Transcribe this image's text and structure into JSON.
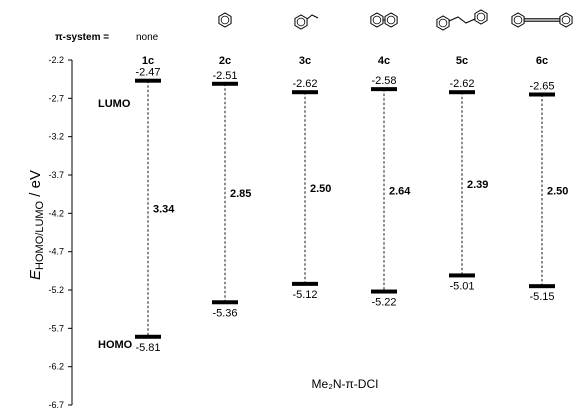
{
  "chart_data": {
    "type": "energy-level diagram",
    "pi_system_label": "π-system =",
    "pi_none_label": "none",
    "xlabel": "Me₂N-π-DCI",
    "ylabel": {
      "main": "E",
      "sub": "HOMO/LUMO",
      "rest": " / eV"
    },
    "ylim": [
      -6.7,
      -2.2
    ],
    "yticks": [
      "-2.2",
      "-2.7",
      "-3.2",
      "-3.7",
      "-4.2",
      "-4.7",
      "-5.2",
      "-5.7",
      "-6.2",
      "-6.7"
    ],
    "level_names": {
      "lumo": "LUMO",
      "homo": "HOMO"
    },
    "compounds": [
      {
        "label": "1c",
        "pi_system": "none",
        "lumo": -2.47,
        "homo": -5.81,
        "lumo_label": "-2.47",
        "homo_label": "-5.81",
        "gap_label": "3.34"
      },
      {
        "label": "2c",
        "pi_system": "benzene",
        "lumo": -2.51,
        "homo": -5.36,
        "lumo_label": "-2.51",
        "homo_label": "-5.36",
        "gap_label": "2.85"
      },
      {
        "label": "3c",
        "pi_system": "styrene",
        "lumo": -2.62,
        "homo": -5.12,
        "lumo_label": "-2.62",
        "homo_label": "-5.12",
        "gap_label": "2.50"
      },
      {
        "label": "4c",
        "pi_system": "biphenyl",
        "lumo": -2.58,
        "homo": -5.22,
        "lumo_label": "-2.58",
        "homo_label": "-5.22",
        "gap_label": "2.64"
      },
      {
        "label": "5c",
        "pi_system": "stilbene",
        "lumo": -2.62,
        "homo": -5.01,
        "lumo_label": "-2.62",
        "homo_label": "-5.01",
        "gap_label": "2.39"
      },
      {
        "label": "6c",
        "pi_system": "tolane",
        "lumo": -2.65,
        "homo": -5.15,
        "lumo_label": "-2.65",
        "homo_label": "-5.15",
        "gap_label": "2.50"
      }
    ]
  }
}
